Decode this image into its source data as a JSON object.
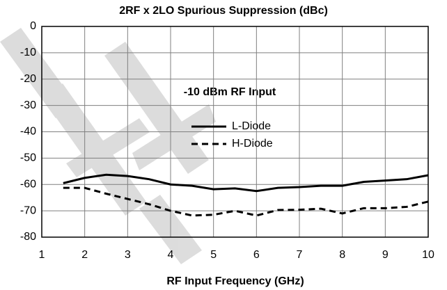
{
  "chart_data": {
    "type": "line",
    "title": "2RF x 2LO Spurious Suppression (dBc)",
    "x_label": "RF Input Frequency (GHz)",
    "annotation": "-10 dBm RF Input",
    "x": [
      1.5,
      2,
      2.5,
      3,
      3.5,
      4,
      4.5,
      5,
      5.5,
      6,
      6.5,
      7,
      7.5,
      8,
      8.5,
      9,
      9.5,
      10
    ],
    "series": [
      {
        "name": "L-Diode",
        "color": "#000000",
        "line_style": "solid",
        "values": [
          -59.5,
          -57.5,
          -56.3,
          -56.8,
          -58,
          -60,
          -60.5,
          -61.8,
          -61.5,
          -62.5,
          -61.3,
          -61,
          -60.5,
          -60.5,
          -59,
          -58.5,
          -58,
          -56.5
        ]
      },
      {
        "name": "H-Diode",
        "color": "#000000",
        "line_style": "dashed",
        "values": [
          -61.3,
          -61.3,
          -63.5,
          -65.5,
          -67.5,
          -70,
          -71.8,
          -71.5,
          -70,
          -71.8,
          -69.7,
          -69.6,
          -69.2,
          -71,
          -69,
          -69,
          -68.5,
          -66.5
        ]
      }
    ],
    "xlim": [
      1,
      10
    ],
    "xticks": [
      1,
      2,
      3,
      4,
      5,
      6,
      7,
      8,
      9,
      10
    ],
    "ylim": [
      -80,
      0
    ],
    "yticks": [
      0,
      -10,
      -20,
      -30,
      -40,
      -50,
      -60,
      -70,
      -80
    ],
    "grid": true
  }
}
